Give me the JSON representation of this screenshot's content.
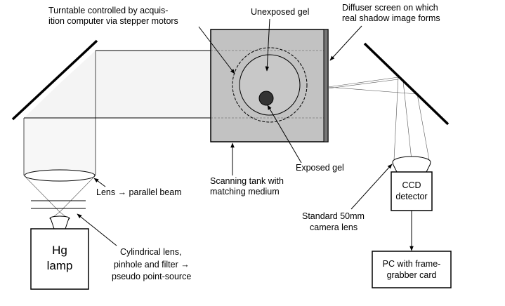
{
  "labels": {
    "turntable": [
      "Turntable controlled by acquis-",
      "ition computer via stepper motors"
    ],
    "unexposed_gel": "Unexposed gel",
    "diffuser": [
      "Diffuser screen on which",
      "real shadow image forms"
    ],
    "exposed_gel": "Exposed gel",
    "scanning_tank": [
      "Scanning tank with",
      "matching medium"
    ],
    "lens_parallel": "Lens → parallel beam",
    "cylindrical": [
      "Cylindrical lens,",
      "pinhole and filter →",
      "pseudo point-source"
    ],
    "camera_lens": [
      "Standard 50mm",
      "camera lens"
    ]
  },
  "boxes": {
    "hg_lamp": [
      "Hg",
      "lamp"
    ],
    "ccd": [
      "CCD",
      "detector"
    ],
    "pc": [
      "PC with frame-",
      "grabber card"
    ]
  }
}
